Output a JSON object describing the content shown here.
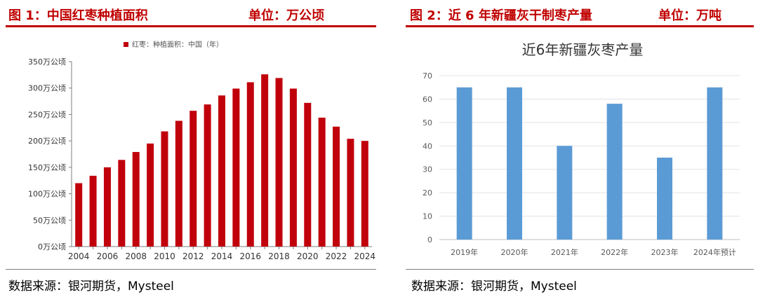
{
  "left": {
    "figure_title": "图 1：中国红枣种植面积",
    "unit": "单位：万公顷",
    "source": "数据来源：银河期货，Mysteel"
  },
  "right": {
    "figure_title": "图 2：近 6 年新疆灰干制枣产量",
    "unit": "单位：万吨",
    "source": "数据来源：银河期货，Mysteel"
  },
  "colors": {
    "accent": "#c00000",
    "left_bar": "#c0000b",
    "right_bar": "#5b9bd5"
  },
  "chart_data": [
    {
      "type": "bar",
      "title": "",
      "legend": [
        "红枣：种植面积：中国（年）"
      ],
      "legend_position": "top-center",
      "x": [
        2004,
        2005,
        2006,
        2007,
        2008,
        2009,
        2010,
        2011,
        2012,
        2013,
        2014,
        2015,
        2016,
        2017,
        2018,
        2019,
        2020,
        2021,
        2022,
        2023,
        2024
      ],
      "x_tick_labels": [
        "2004",
        "2006",
        "2008",
        "2010",
        "2012",
        "2014",
        "2016",
        "2018",
        "2020",
        "2022",
        "2024"
      ],
      "series": [
        {
          "name": "红枣：种植面积：中国（年）",
          "values": [
            120,
            134,
            150,
            164,
            179,
            195,
            218,
            238,
            257,
            269,
            286,
            299,
            311,
            326,
            319,
            299,
            272,
            244,
            227,
            204,
            200
          ]
        }
      ],
      "ylim": [
        0,
        350
      ],
      "y_tick_labels": [
        "0万公顷",
        "50万公顷",
        "100万公顷",
        "150万公顷",
        "200万公顷",
        "250万公顷",
        "300万公顷",
        "350万公顷"
      ],
      "grid": false
    },
    {
      "type": "bar",
      "title": "近6年新疆灰枣产量",
      "categories": [
        "2019年",
        "2020年",
        "2021年",
        "2022年",
        "2023年",
        "2024年预计"
      ],
      "series": [
        {
          "values": [
            65,
            65,
            40,
            58,
            35,
            65
          ]
        }
      ],
      "ylim": [
        0,
        70
      ],
      "y_tick_labels": [
        "0",
        "10",
        "20",
        "30",
        "40",
        "50",
        "60",
        "70"
      ],
      "grid": true
    }
  ]
}
